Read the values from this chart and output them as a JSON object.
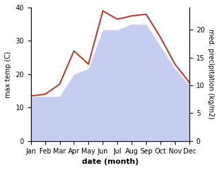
{
  "months": [
    "Jan",
    "Feb",
    "Mar",
    "Apr",
    "May",
    "Jun",
    "Jul",
    "Aug",
    "Sep",
    "Oct",
    "Nov",
    "Dec"
  ],
  "temp": [
    13.5,
    14.0,
    17.0,
    27.0,
    23.0,
    39.0,
    36.5,
    37.5,
    38.0,
    31.0,
    23.0,
    17.5
  ],
  "precip": [
    8.0,
    8.0,
    8.0,
    12.0,
    13.0,
    20.0,
    20.0,
    21.0,
    21.0,
    17.0,
    13.0,
    10.0
  ],
  "temp_color": "#c0392b",
  "precip_fill_color": "#c5cef0",
  "ylim_left": [
    0,
    40
  ],
  "ylim_right": [
    0,
    24
  ],
  "yticks_left": [
    0,
    10,
    20,
    30,
    40
  ],
  "yticks_right": [
    0,
    5,
    10,
    15,
    20
  ],
  "ylabel_left": "max temp (C)",
  "ylabel_right": "med. precipitation (kg/m2)",
  "xlabel": "date (month)",
  "figsize": [
    3.18,
    2.47
  ],
  "dpi": 100
}
